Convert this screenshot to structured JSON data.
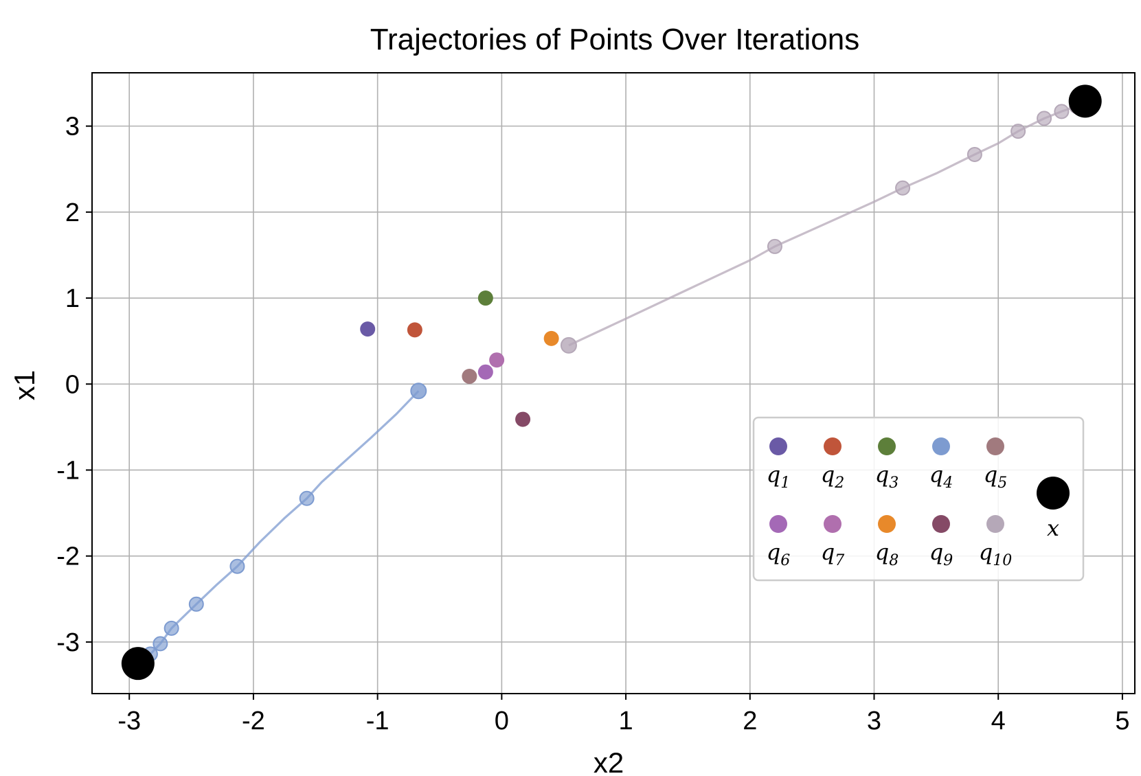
{
  "chart_data": {
    "type": "scatter",
    "title": "Trajectories of Points Over Iterations",
    "xlabel": "x2",
    "ylabel": "x1",
    "xlim": [
      -3.3,
      5.1
    ],
    "ylim": [
      -3.6,
      3.62
    ],
    "xticks": [
      -3,
      -2,
      -1,
      0,
      1,
      2,
      3,
      4,
      5
    ],
    "yticks": [
      -3,
      -2,
      -1,
      0,
      1,
      2,
      3
    ],
    "xtick_labels": [
      "-3",
      "-2",
      "-1",
      "0",
      "1",
      "2",
      "3",
      "4",
      "5"
    ],
    "ytick_labels": [
      "-3",
      "-2",
      "-1",
      "0",
      "1",
      "2",
      "3"
    ],
    "grid": true,
    "legend_position": "lower-right",
    "series": [
      {
        "name": "q",
        "sub": "1",
        "color": "#6a5aa6",
        "x": -1.08,
        "y": 0.64
      },
      {
        "name": "q",
        "sub": "2",
        "color": "#c0553a",
        "x": -0.7,
        "y": 0.63
      },
      {
        "name": "q",
        "sub": "3",
        "color": "#5d7f3a",
        "x": -0.13,
        "y": 1.0
      },
      {
        "name": "q",
        "sub": "4",
        "color": "#7d9bd0",
        "x": -0.67,
        "y": -0.08,
        "trajectory": {
          "x": [
            -0.67,
            -1.57,
            -2.13,
            -2.46,
            -2.66,
            -2.75,
            -2.83,
            -2.88,
            -2.93
          ],
          "y": [
            -0.08,
            -1.33,
            -2.12,
            -2.56,
            -2.84,
            -3.02,
            -3.14,
            -3.2,
            -3.25
          ],
          "line_x": [
            -0.67,
            -0.85,
            -1.05,
            -1.25,
            -1.45,
            -1.57,
            -1.75,
            -1.95,
            -2.13,
            -2.3,
            -2.46,
            -2.66,
            -2.75,
            -2.83,
            -2.88,
            -2.93
          ],
          "line_y": [
            -0.08,
            -0.35,
            -0.62,
            -0.88,
            -1.14,
            -1.33,
            -1.56,
            -1.84,
            -2.12,
            -2.34,
            -2.56,
            -2.84,
            -3.02,
            -3.14,
            -3.2,
            -3.25
          ]
        }
      },
      {
        "name": "q",
        "sub": "5",
        "color": "#a17a7e",
        "x": -0.26,
        "y": 0.09
      },
      {
        "name": "q",
        "sub": "6",
        "color": "#a469b6",
        "x": -0.13,
        "y": 0.14
      },
      {
        "name": "q",
        "sub": "7",
        "color": "#b06fae",
        "x": -0.04,
        "y": 0.28
      },
      {
        "name": "q",
        "sub": "8",
        "color": "#e8892a",
        "x": 0.4,
        "y": 0.53
      },
      {
        "name": "q",
        "sub": "9",
        "color": "#854a66",
        "x": 0.17,
        "y": -0.41
      },
      {
        "name": "q",
        "sub": "10",
        "color": "#b5a8b8",
        "x": 0.54,
        "y": 0.45,
        "trajectory": {
          "x": [
            0.54,
            2.2,
            3.23,
            3.81,
            4.16,
            4.37,
            4.51,
            4.63,
            4.7
          ],
          "y": [
            0.45,
            1.6,
            2.28,
            2.67,
            2.94,
            3.09,
            3.17,
            3.23,
            3.27
          ],
          "line_x": [
            0.54,
            1.0,
            1.5,
            2.0,
            2.2,
            2.6,
            3.0,
            3.23,
            3.5,
            3.81,
            4.0,
            4.16,
            4.37,
            4.51,
            4.63,
            4.7
          ],
          "line_y": [
            0.45,
            0.76,
            1.1,
            1.44,
            1.6,
            1.86,
            2.12,
            2.28,
            2.45,
            2.67,
            2.8,
            2.94,
            3.09,
            3.17,
            3.23,
            3.27
          ]
        }
      }
    ],
    "targets": {
      "name": "x",
      "color": "#000000",
      "points": [
        {
          "x": -2.93,
          "y": -3.25
        },
        {
          "x": 4.7,
          "y": 3.29
        }
      ]
    }
  }
}
